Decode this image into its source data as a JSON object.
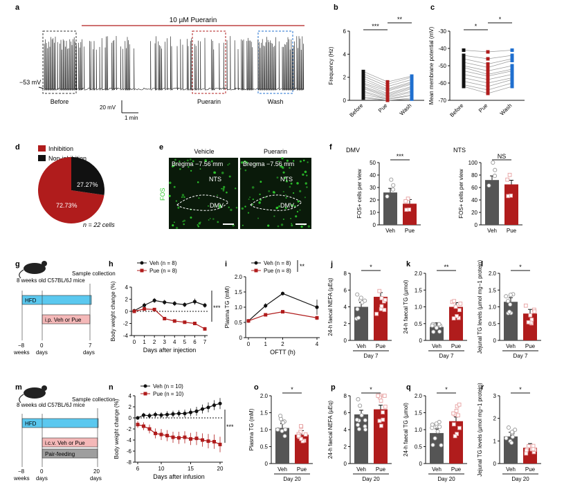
{
  "panels": {
    "a": {
      "letter": "a",
      "drug_bar": "10 µM Puerarin",
      "resting": "−53 mV",
      "before": "Before",
      "puerarin": "Puerarin",
      "wash": "Wash",
      "scale_v": "20 mV",
      "scale_t": "1 min"
    },
    "b": {
      "letter": "b",
      "ylabel": "Frequency (Hz)",
      "ylim": [
        0,
        6
      ],
      "yticks": [
        "0",
        "2",
        "4",
        "6"
      ],
      "cats": [
        "Before",
        "Pue",
        "Wash"
      ],
      "sig1": "***",
      "sig2": "**"
    },
    "c": {
      "letter": "c",
      "ylabel": "Mean membrane potential (mV)",
      "ylim": [
        -70,
        -30
      ],
      "yticks": [
        "-30",
        "-40",
        "-50",
        "-60",
        "-70"
      ],
      "cats": [
        "Before",
        "Pue",
        "Wash"
      ],
      "sig1": "*",
      "sig2": "*"
    },
    "d": {
      "letter": "d",
      "leg1": "Inhibition",
      "leg2": "Non-inhibition",
      "p1": "72.73%",
      "p2": "27.27%",
      "n": "n = 22 cells"
    },
    "e": {
      "letter": "e",
      "veh": "Vehicle",
      "pue": "Puerarin",
      "bregma": "Bregma −7.56 mm",
      "nts": "NTS",
      "dmv": "DMV",
      "fos": "FOS"
    },
    "f": {
      "letter": "f",
      "t1": "DMV",
      "t2": "NTS",
      "ylabel": "FOS+ cells per view",
      "sig1": "***",
      "sig2": "NS",
      "yticks1": [
        "0",
        "10",
        "20",
        "30",
        "40",
        "50"
      ],
      "yticks2": [
        "0",
        "20",
        "40",
        "60",
        "80",
        "100"
      ],
      "cats": [
        "Veh",
        "Pue"
      ]
    },
    "g": {
      "letter": "g",
      "mice": "8 weeks old C57BL/6J mice",
      "sample": "Sample collection",
      "hfd": "HFD",
      "ip": "i.p. Veh or Pue",
      "t1": "−8",
      "t1b": "weeks",
      "t2": "0",
      "t2b": "days",
      "t3": "7",
      "t3b": "days"
    },
    "h": {
      "letter": "h",
      "ylabel": "Body weight change (%)",
      "xlabel": "Days after injection",
      "leg1": "Veh (n = 8)",
      "leg2": "Pue (n = 8)",
      "sig": "***",
      "yticks": [
        "4",
        "2",
        "0",
        "-2",
        "-4"
      ],
      "xticks": [
        "0",
        "1",
        "2",
        "3",
        "4",
        "5",
        "6",
        "7"
      ]
    },
    "i": {
      "letter": "i",
      "ylabel": "Plasma TG (mM)",
      "xlabel": "OFTT (h)",
      "leg1": "Veh (n = 8)",
      "leg2": "Pue (n = 8)",
      "sig": "**",
      "yticks": [
        "0",
        "0.5",
        "1.0",
        "1.5",
        "2.0"
      ],
      "xticks": [
        "0",
        "1",
        "2",
        "4"
      ]
    },
    "j": {
      "letter": "j",
      "ylabel": "24-h faecal NEFA (µEq)",
      "sig": "*",
      "day": "Day 7",
      "yticks": [
        "0",
        "2",
        "4",
        "6",
        "8"
      ],
      "cats": [
        "Veh",
        "Pue"
      ]
    },
    "k": {
      "letter": "k",
      "ylabel": "24-h faecal TG (µmol)",
      "sig": "**",
      "day": "Day 7",
      "yticks": [
        "0",
        "0.5",
        "1.0",
        "1.5",
        "2.0"
      ],
      "cats": [
        "Veh",
        "Pue"
      ]
    },
    "l": {
      "letter": "l",
      "ylabel": "Jejunal TG levels (µmol mg−1 protein)",
      "sig": "*",
      "day": "Day 7",
      "yticks": [
        "0",
        "0.5",
        "1.0",
        "1.5",
        "2.0"
      ],
      "cats": [
        "Veh",
        "Pue"
      ]
    },
    "m": {
      "letter": "m",
      "mice": "8 weeks old C57BL/6J mice",
      "sample": "Sample collection",
      "hfd": "HFD",
      "icv": "i.c.v. Veh or Pue",
      "pf": "Pair-feeding",
      "t1": "−8",
      "t1b": "weeks",
      "t2": "0",
      "t2b": "days",
      "t3": "20",
      "t3b": "days"
    },
    "n": {
      "letter": "n",
      "ylabel": "Body weight change (%)",
      "xlabel": "Days after infusion",
      "leg1": "Veh (n = 10)",
      "leg2": "Pue (n = 10)",
      "sig": "***",
      "yticks": [
        "4",
        "2",
        "0",
        "-2",
        "-4",
        "-6",
        "-8"
      ],
      "xticks": [
        "6",
        "10",
        "15",
        "20"
      ]
    },
    "o": {
      "letter": "o",
      "ylabel": "Plasma TG (mM)",
      "sig": "*",
      "day": "Day 20",
      "yticks": [
        "0",
        "0.5",
        "1.0",
        "1.5",
        "2.0"
      ],
      "cats": [
        "Veh",
        "Pue"
      ]
    },
    "p": {
      "letter": "p",
      "ylabel": "24-h faecal NEFA (µEq)",
      "sig": "*",
      "day": "Day 20",
      "yticks": [
        "0",
        "2",
        "4",
        "6",
        "8"
      ],
      "cats": [
        "Veh",
        "Pue"
      ]
    },
    "q": {
      "letter": "q",
      "ylabel": "24-h faecal TG (µmol)",
      "sig": "*",
      "day": "Day 20",
      "yticks": [
        "0",
        "0.5",
        "1.0",
        "1.5",
        "2.0"
      ],
      "cats": [
        "Veh",
        "Pue"
      ]
    },
    "r": {
      "letter": "r",
      "ylabel": "Jejunal TG levels (µmol mg−1 protein)",
      "sig": "*",
      "day": "Day 20",
      "yticks": [
        "0",
        "1",
        "2",
        "3"
      ],
      "cats": [
        "Veh",
        "Pue"
      ]
    }
  },
  "colors": {
    "veh": "#555555",
    "pue": "#b01c1c",
    "wash": "#1f6fcf",
    "black": "#111111",
    "hfd": "#5bc8ef",
    "ipbox": "#f4b8b8",
    "pfbox": "#9e9e9e",
    "green": "#33cc33"
  },
  "chart_data": [
    {
      "panel": "b",
      "type": "scatter",
      "categories": [
        "Before",
        "Pue",
        "Wash"
      ],
      "ylim": [
        0,
        6
      ],
      "series": [
        {
          "values": [
            2.5,
            1.6,
            2.1
          ]
        },
        {
          "values": [
            2.3,
            1.4,
            2.0
          ]
        },
        {
          "values": [
            2.1,
            1.2,
            1.8
          ]
        },
        {
          "values": [
            1.9,
            1.0,
            1.6
          ]
        },
        {
          "values": [
            1.7,
            0.9,
            1.5
          ]
        },
        {
          "values": [
            1.5,
            0.8,
            1.4
          ]
        },
        {
          "values": [
            1.4,
            0.6,
            1.2
          ]
        },
        {
          "values": [
            1.2,
            0.5,
            1.1
          ]
        },
        {
          "values": [
            1.1,
            0.4,
            1.0
          ]
        },
        {
          "values": [
            1.0,
            0.3,
            0.8
          ]
        },
        {
          "values": [
            0.8,
            0.2,
            0.7
          ]
        },
        {
          "values": [
            0.7,
            0.1,
            0.5
          ]
        },
        {
          "values": [
            0.5,
            0.1,
            0.4
          ]
        },
        {
          "values": [
            0.3,
            0.0,
            0.2
          ]
        },
        {
          "values": [
            0.2,
            0.0,
            0.1
          ]
        }
      ]
    },
    {
      "panel": "c",
      "type": "scatter",
      "categories": [
        "Before",
        "Pue",
        "Wash"
      ],
      "ylim": [
        -70,
        -30
      ],
      "series": [
        {
          "values": [
            -41,
            -42,
            -41
          ]
        },
        {
          "values": [
            -44,
            -46,
            -44
          ]
        },
        {
          "values": [
            -46,
            -49,
            -46
          ]
        },
        {
          "values": [
            -48,
            -51,
            -47
          ]
        },
        {
          "values": [
            -50,
            -53,
            -50
          ]
        },
        {
          "values": [
            -51,
            -55,
            -52
          ]
        },
        {
          "values": [
            -53,
            -56,
            -53
          ]
        },
        {
          "values": [
            -55,
            -58,
            -55
          ]
        },
        {
          "values": [
            -57,
            -60,
            -57
          ]
        },
        {
          "values": [
            -59,
            -62,
            -58
          ]
        },
        {
          "values": [
            -61,
            -64,
            -60
          ]
        },
        {
          "values": [
            -62,
            -66,
            -62
          ]
        }
      ]
    },
    {
      "panel": "d",
      "type": "pie",
      "categories": [
        "Inhibition",
        "Non-inhibition"
      ],
      "values": [
        72.73,
        27.27
      ]
    },
    {
      "panel": "f-DMV",
      "type": "bar",
      "categories": [
        "Veh",
        "Pue"
      ],
      "values": [
        26,
        17
      ],
      "ylim": [
        0,
        50
      ]
    },
    {
      "panel": "f-NTS",
      "type": "bar",
      "categories": [
        "Veh",
        "Pue"
      ],
      "values": [
        72,
        65
      ],
      "ylim": [
        0,
        100
      ]
    },
    {
      "panel": "h",
      "type": "line",
      "x": [
        0,
        1,
        2,
        3,
        4,
        5,
        6,
        7
      ],
      "ylim": [
        -4,
        4
      ],
      "series": [
        {
          "name": "Veh (n = 8)",
          "values": [
            0.1,
            1.0,
            1.8,
            1.5,
            1.3,
            1.1,
            1.6,
            1.0
          ],
          "err": [
            0.2,
            0.4,
            0.4,
            0.4,
            0.4,
            0.4,
            0.5,
            0.4
          ]
        },
        {
          "name": "Pue (n = 8)",
          "values": [
            0.0,
            0.4,
            0.3,
            -1.2,
            -1.6,
            -1.8,
            -2.0,
            -2.9
          ],
          "err": [
            0.1,
            0.2,
            0.2,
            0.2,
            0.2,
            0.2,
            0.2,
            0.3
          ]
        }
      ]
    },
    {
      "panel": "i",
      "type": "line",
      "x": [
        0,
        1,
        2,
        4
      ],
      "ylim": [
        0,
        2
      ],
      "series": [
        {
          "name": "Veh (n = 8)",
          "values": [
            0.55,
            1.05,
            1.45,
            1.0
          ],
          "err": [
            0.05,
            0.08,
            0.06,
            0.25
          ]
        },
        {
          "name": "Pue (n = 8)",
          "values": [
            0.55,
            0.75,
            0.85,
            0.65
          ],
          "err": [
            0.04,
            0.05,
            0.05,
            0.07
          ]
        }
      ]
    },
    {
      "panel": "j",
      "type": "bar",
      "categories": [
        "Veh",
        "Pue"
      ],
      "values": [
        4.0,
        5.2
      ],
      "ylim": [
        0,
        8
      ]
    },
    {
      "panel": "k",
      "type": "bar",
      "categories": [
        "Veh",
        "Pue"
      ],
      "values": [
        0.4,
        1.0
      ],
      "ylim": [
        0,
        2
      ]
    },
    {
      "panel": "l",
      "type": "bar",
      "categories": [
        "Veh",
        "Pue"
      ],
      "values": [
        1.15,
        0.8
      ],
      "ylim": [
        0,
        2
      ]
    },
    {
      "panel": "n",
      "type": "line",
      "x": [
        6,
        7,
        8,
        9,
        10,
        11,
        12,
        13,
        14,
        15,
        16,
        17,
        18,
        19,
        20
      ],
      "ylim": [
        -8,
        4
      ],
      "series": [
        {
          "name": "Veh (n = 10)",
          "values": [
            0,
            0.5,
            0.4,
            0.6,
            0.5,
            0.6,
            0.7,
            0.8,
            0.8,
            1.0,
            1.2,
            1.6,
            1.9,
            2.3,
            2.6
          ],
          "err": [
            0.3,
            0.4,
            0.5,
            0.5,
            0.5,
            0.6,
            0.6,
            0.6,
            0.7,
            0.7,
            0.8,
            0.8,
            0.9,
            0.9,
            1.0
          ]
        },
        {
          "name": "Pue (n = 10)",
          "values": [
            -1.2,
            -1.5,
            -2.0,
            -2.8,
            -3.0,
            -3.2,
            -3.5,
            -3.6,
            -3.5,
            -3.8,
            -3.7,
            -4.0,
            -4.2,
            -4.3,
            -4.8
          ],
          "err": [
            0.6,
            0.7,
            0.8,
            0.9,
            1.0,
            1.0,
            1.0,
            1.1,
            1.1,
            1.1,
            1.2,
            1.2,
            1.3,
            1.3,
            1.4
          ]
        }
      ]
    },
    {
      "panel": "o",
      "type": "bar",
      "categories": [
        "Veh",
        "Pue"
      ],
      "values": [
        1.05,
        0.85
      ],
      "ylim": [
        0,
        2
      ]
    },
    {
      "panel": "p",
      "type": "bar",
      "categories": [
        "Veh",
        "Pue"
      ],
      "values": [
        5.8,
        6.4
      ],
      "ylim": [
        0,
        8
      ]
    },
    {
      "panel": "q",
      "type": "bar",
      "categories": [
        "Veh",
        "Pue"
      ],
      "values": [
        0.9,
        1.25
      ],
      "ylim": [
        0,
        2
      ]
    },
    {
      "panel": "r",
      "type": "bar",
      "categories": [
        "Veh",
        "Pue"
      ],
      "values": [
        1.2,
        0.7
      ],
      "ylim": [
        0,
        3
      ]
    }
  ]
}
